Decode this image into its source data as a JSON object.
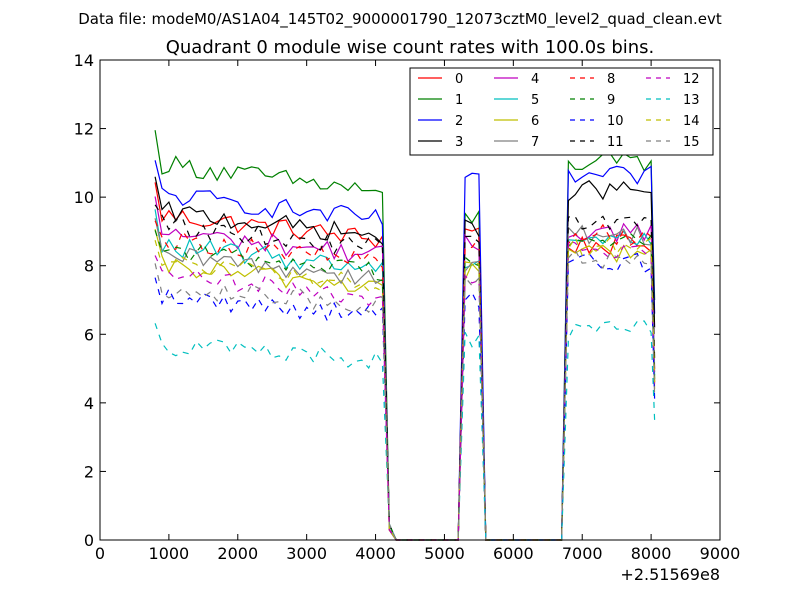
{
  "figure": {
    "suptitle": "Data file: modeM0/AS1A04_145T02_9000001790_12073cztM0_level2_quad_clean.evt"
  },
  "chart_data": {
    "type": "line",
    "title": "Quadrant 0 module wise count rates with 100.0s bins.",
    "xlabel": "",
    "ylabel": "",
    "x_offset_label": "+2.51569e8",
    "xlim": [
      0,
      9000
    ],
    "ylim": [
      0,
      14
    ],
    "xticks": [
      0,
      1000,
      2000,
      3000,
      4000,
      5000,
      6000,
      7000,
      8000,
      9000
    ],
    "yticks": [
      0,
      2,
      4,
      6,
      8,
      10,
      12,
      14
    ],
    "grid": false,
    "legend": {
      "position": "top-right",
      "columns": 4
    },
    "x_segments": [
      {
        "start": 800,
        "end": 4200
      },
      {
        "start": 5300,
        "end": 5500
      },
      {
        "start": 6800,
        "end": 8000
      }
    ],
    "series": [
      {
        "name": "0",
        "color": "#ff0000",
        "dash": "solid",
        "level_segments": [
          9.5,
          9.0,
          8.6
        ]
      },
      {
        "name": "1",
        "color": "#008000",
        "dash": "solid",
        "level_segments": [
          11.0,
          9.4,
          11.0
        ]
      },
      {
        "name": "2",
        "color": "#0000ff",
        "dash": "solid",
        "level_segments": [
          10.1,
          10.4,
          10.6
        ]
      },
      {
        "name": "3",
        "color": "#000000",
        "dash": "solid",
        "level_segments": [
          9.6,
          9.1,
          10.2
        ]
      },
      {
        "name": "4",
        "color": "#bf00bf",
        "dash": "solid",
        "level_segments": [
          9.0,
          8.6,
          9.0
        ]
      },
      {
        "name": "5",
        "color": "#00bfbf",
        "dash": "solid",
        "level_segments": [
          8.6,
          8.2,
          8.8
        ]
      },
      {
        "name": "6",
        "color": "#bfbf00",
        "dash": "solid",
        "level_segments": [
          8.0,
          7.8,
          8.4
        ]
      },
      {
        "name": "7",
        "color": "#808080",
        "dash": "solid",
        "level_segments": [
          8.3,
          8.0,
          8.9
        ]
      },
      {
        "name": "8",
        "color": "#ff0000",
        "dash": "dashed",
        "level_segments": [
          8.8,
          8.6,
          8.9
        ]
      },
      {
        "name": "9",
        "color": "#008000",
        "dash": "dashed",
        "level_segments": [
          8.5,
          8.3,
          8.7
        ]
      },
      {
        "name": "10",
        "color": "#0000ff",
        "dash": "dashed",
        "level_segments": [
          7.1,
          7.0,
          8.1
        ]
      },
      {
        "name": "11",
        "color": "#000000",
        "dash": "dashed",
        "level_segments": [
          9.2,
          8.8,
          9.3
        ]
      },
      {
        "name": "12",
        "color": "#bf00bf",
        "dash": "dashed",
        "level_segments": [
          7.7,
          7.6,
          8.5
        ]
      },
      {
        "name": "13",
        "color": "#00bfbf",
        "dash": "dashed",
        "level_segments": [
          5.7,
          5.9,
          6.1
        ]
      },
      {
        "name": "14",
        "color": "#bfbf00",
        "dash": "dashed",
        "level_segments": [
          8.1,
          7.9,
          8.6
        ]
      },
      {
        "name": "15",
        "color": "#808080",
        "dash": "dashed",
        "level_segments": [
          7.4,
          7.4,
          8.2
        ]
      }
    ]
  }
}
